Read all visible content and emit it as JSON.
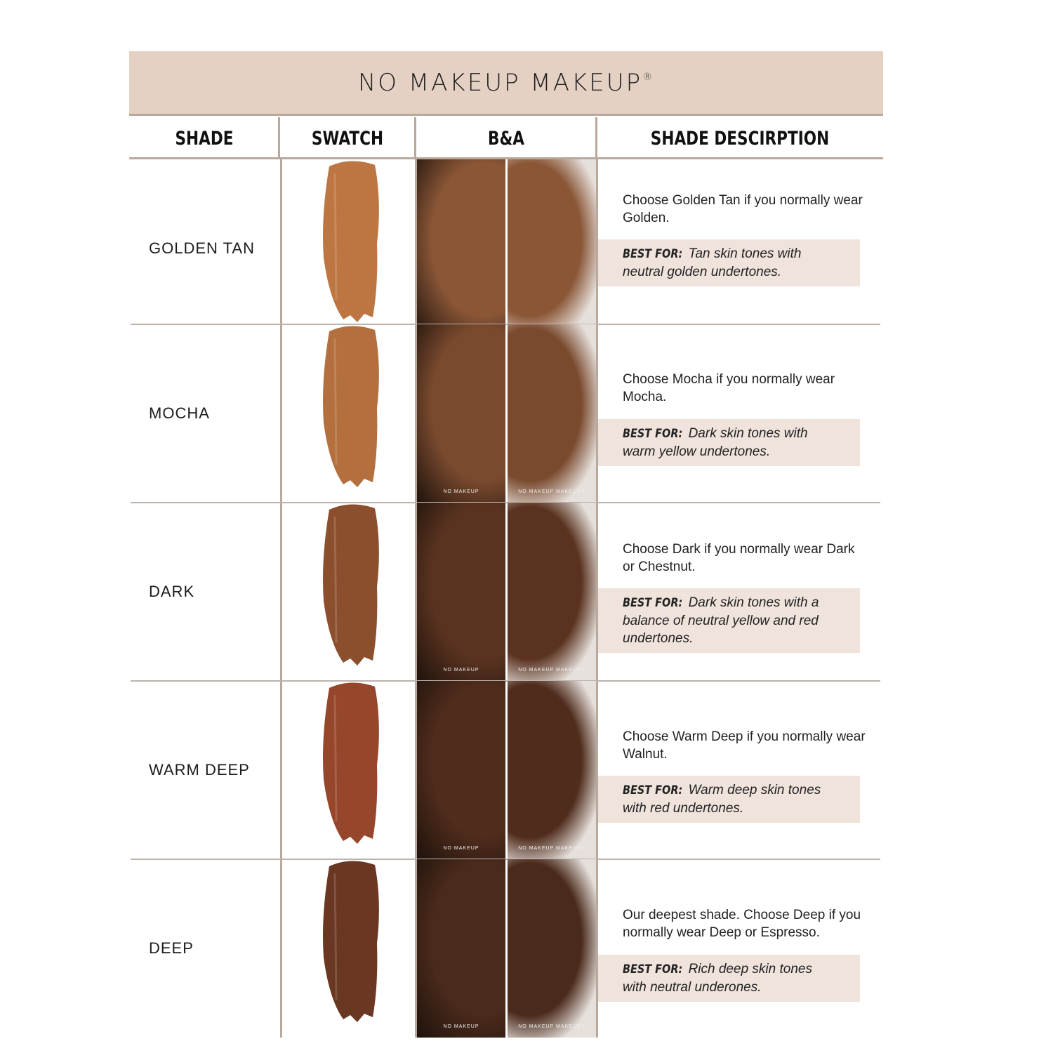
{
  "title": "NO MAKEUP MAKEUP",
  "title_mark": "®",
  "headers": {
    "shade": "SHADE",
    "swatch": "SWATCH",
    "ba": "B&A",
    "description": "SHADE DESCIRPTION"
  },
  "photo_labels": {
    "before": "NO MAKEUP",
    "after": "NO MAKEUP MAKEUP®"
  },
  "best_for_label": "BEST FOR:",
  "rows": [
    {
      "shade": "GOLDEN TAN",
      "description": "Choose Golden Tan if you normally wear Golden.",
      "best_for": "Tan skin tones with neutral golden undertones.",
      "swatch_color": "#bd7642",
      "skin": "#8a5636"
    },
    {
      "shade": "MOCHA",
      "description": "Choose Mocha if you normally wear Mocha.",
      "best_for": "Dark skin tones with warm yellow undertones.",
      "swatch_color": "#b36f3e",
      "skin": "#7a4a2e"
    },
    {
      "shade": "DARK",
      "description": "Choose Dark if you normally wear Dark or Chestnut.",
      "best_for": "Dark skin tones with a balance of neutral yellow and red undertones.",
      "swatch_color": "#8b4f2e",
      "skin": "#5a3320"
    },
    {
      "shade": "WARM DEEP",
      "description": "Choose Warm Deep if you normally wear Walnut.",
      "best_for": "Warm deep skin tones with red undertones.",
      "swatch_color": "#96462a",
      "skin": "#4f2c1c"
    },
    {
      "shade": "DEEP",
      "description": "Our deepest shade. Choose Deep if you normally wear Deep or Espresso.",
      "best_for": "Rich deep skin tones with neutral underones.",
      "swatch_color": "#6a3722",
      "skin": "#4a2a1b"
    }
  ]
}
